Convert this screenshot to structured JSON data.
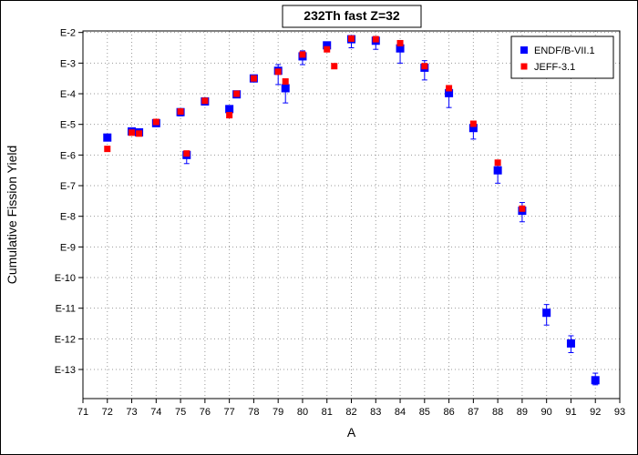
{
  "chart_data": {
    "type": "scatter",
    "title": "232Th fast Z=32",
    "xlabel": "A",
    "ylabel": "Cumulative Fission Yield",
    "xlim": [
      71,
      93
    ],
    "x_ticks": [
      71,
      72,
      73,
      74,
      75,
      76,
      77,
      78,
      79,
      80,
      81,
      82,
      83,
      84,
      85,
      86,
      87,
      88,
      89,
      90,
      91,
      92,
      93
    ],
    "ylim_exp": [
      -13.95,
      -1.95
    ],
    "y_scale": "log",
    "y_ticks": [
      {
        "exp": -2,
        "label": "E-2"
      },
      {
        "exp": -3,
        "label": "E-3"
      },
      {
        "exp": -4,
        "label": "E-4"
      },
      {
        "exp": -5,
        "label": "E-5"
      },
      {
        "exp": -6,
        "label": "E-6"
      },
      {
        "exp": -7,
        "label": "E-7"
      },
      {
        "exp": -8,
        "label": "E-8"
      },
      {
        "exp": -9,
        "label": "E-9"
      },
      {
        "exp": -10,
        "label": "E-10"
      },
      {
        "exp": -11,
        "label": "E-11"
      },
      {
        "exp": -12,
        "label": "E-12"
      },
      {
        "exp": -13,
        "label": "E-13"
      }
    ],
    "grid": true,
    "legend_position": "top-right",
    "series": [
      {
        "name": "ENDF/B-VII.1",
        "color": "#0000ff",
        "marker": "square",
        "points": [
          {
            "x": 72,
            "y_exp": -5.43,
            "err_hi": -5.38,
            "err_lo": -5.48
          },
          {
            "x": 73,
            "y_exp": -5.23,
            "err_hi": -5.17,
            "err_lo": -5.29
          },
          {
            "x": 73.3,
            "y_exp": -5.26,
            "err_hi": -5.2,
            "err_lo": -5.32
          },
          {
            "x": 74,
            "y_exp": -4.96,
            "err_hi": -4.9,
            "err_lo": -5.02
          },
          {
            "x": 75,
            "y_exp": -4.6,
            "err_hi": -4.52,
            "err_lo": -4.72
          },
          {
            "x": 75.25,
            "y_exp": -6.0,
            "err_hi": -5.88,
            "err_lo": -6.28
          },
          {
            "x": 76,
            "y_exp": -4.25,
            "err_hi": -4.2,
            "err_lo": -4.3
          },
          {
            "x": 77,
            "y_exp": -4.5,
            "err_hi": -4.45,
            "err_lo": -4.55
          },
          {
            "x": 77.3,
            "y_exp": -4.02,
            "err_hi": -3.94,
            "err_lo": -4.12
          },
          {
            "x": 78,
            "y_exp": -3.5,
            "err_hi": -3.45,
            "err_lo": -3.55
          },
          {
            "x": 79,
            "y_exp": -3.25,
            "err_hi": -3.05,
            "err_lo": -3.7
          },
          {
            "x": 79.3,
            "y_exp": -3.82,
            "err_hi": -3.55,
            "err_lo": -4.3
          },
          {
            "x": 80,
            "y_exp": -2.78,
            "err_hi": -2.6,
            "err_lo": -3.05
          },
          {
            "x": 81,
            "y_exp": -2.42,
            "err_hi": -2.32,
            "err_lo": -2.6
          },
          {
            "x": 82,
            "y_exp": -2.22,
            "err_hi": -2.12,
            "err_lo": -2.5
          },
          {
            "x": 83,
            "y_exp": -2.27,
            "err_hi": -2.13,
            "err_lo": -2.55
          },
          {
            "x": 84,
            "y_exp": -2.52,
            "err_hi": -2.38,
            "err_lo": -3.0
          },
          {
            "x": 85,
            "y_exp": -3.15,
            "err_hi": -2.92,
            "err_lo": -3.55
          },
          {
            "x": 86,
            "y_exp": -3.98,
            "err_hi": -3.75,
            "err_lo": -4.45
          },
          {
            "x": 87,
            "y_exp": -5.12,
            "err_hi": -4.92,
            "err_lo": -5.48
          },
          {
            "x": 88,
            "y_exp": -6.5,
            "err_hi": -6.22,
            "err_lo": -6.92
          },
          {
            "x": 89,
            "y_exp": -7.82,
            "err_hi": -7.55,
            "err_lo": -8.18
          },
          {
            "x": 90,
            "y_exp": -11.15,
            "err_hi": -10.88,
            "err_lo": -11.55
          },
          {
            "x": 91,
            "y_exp": -12.15,
            "err_hi": -11.9,
            "err_lo": -12.45
          },
          {
            "x": 92,
            "y_exp": -13.35,
            "err_hi": -13.12,
            "err_lo": -13.5
          }
        ]
      },
      {
        "name": "JEFF-3.1",
        "color": "#ff0000",
        "marker": "square",
        "points": [
          {
            "x": 72,
            "y_exp": -5.8
          },
          {
            "x": 73,
            "y_exp": -5.27
          },
          {
            "x": 73.3,
            "y_exp": -5.3
          },
          {
            "x": 74,
            "y_exp": -4.92
          },
          {
            "x": 75,
            "y_exp": -4.58
          },
          {
            "x": 75.25,
            "y_exp": -5.95
          },
          {
            "x": 76,
            "y_exp": -4.23
          },
          {
            "x": 77,
            "y_exp": -4.7
          },
          {
            "x": 77.3,
            "y_exp": -4.0
          },
          {
            "x": 78,
            "y_exp": -3.5
          },
          {
            "x": 79,
            "y_exp": -3.28
          },
          {
            "x": 79.3,
            "y_exp": -3.6
          },
          {
            "x": 80,
            "y_exp": -2.72
          },
          {
            "x": 81,
            "y_exp": -2.55
          },
          {
            "x": 81.3,
            "y_exp": -3.1
          },
          {
            "x": 82,
            "y_exp": -2.2
          },
          {
            "x": 83,
            "y_exp": -2.22
          },
          {
            "x": 84,
            "y_exp": -2.35
          },
          {
            "x": 85,
            "y_exp": -3.1
          },
          {
            "x": 86,
            "y_exp": -3.82
          },
          {
            "x": 87,
            "y_exp": -4.98
          },
          {
            "x": 88,
            "y_exp": -6.25
          },
          {
            "x": 89,
            "y_exp": -7.75
          }
        ]
      }
    ]
  }
}
